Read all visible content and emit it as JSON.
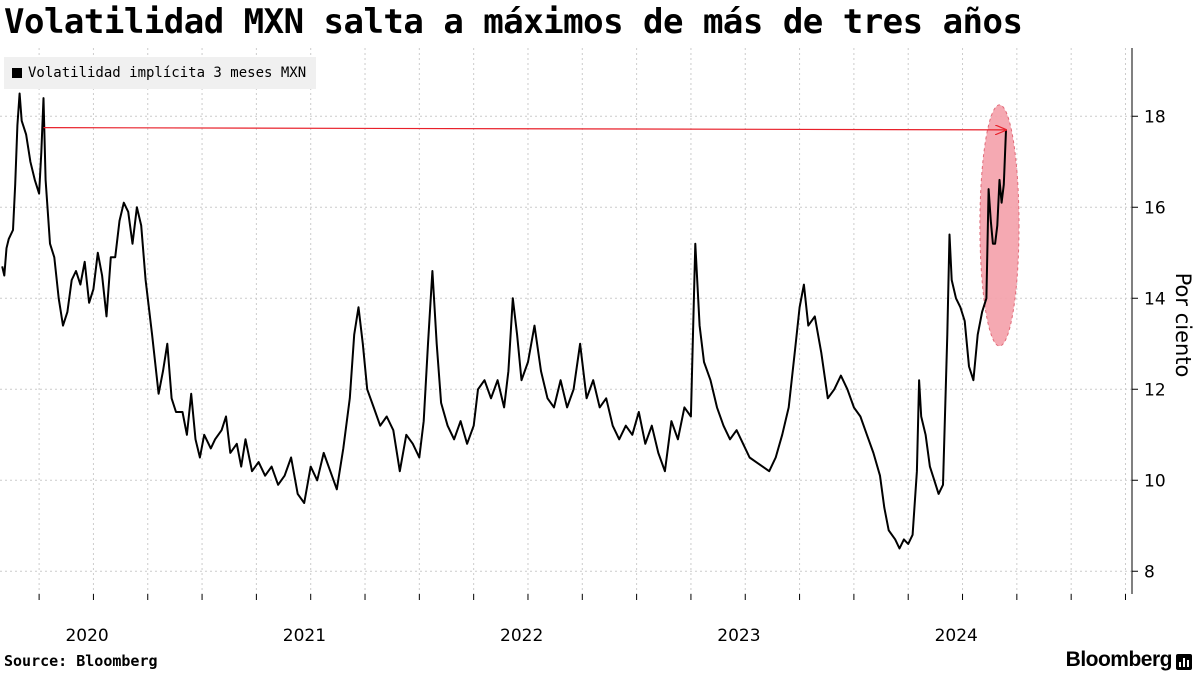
{
  "title": "Volatilidad MXN salta a máximos de más de tres años",
  "legend_label": "Volatilidad implícita 3 meses MXN",
  "source": "Source: Bloomberg",
  "brand": "Bloomberg",
  "brand_icon": "bar-chart-icon",
  "colors": {
    "line": "#000000",
    "arrow": "#e8202a",
    "highlight": "#f4a0aa",
    "grid": "#cccccc"
  },
  "chart_data": {
    "type": "line",
    "title": "Volatilidad MXN salta a máximos de más de tres años",
    "ylabel": "Por ciento",
    "ylim": [
      7.5,
      19.5
    ],
    "yticks": [
      8,
      10,
      12,
      14,
      16,
      18
    ],
    "x_ticks": [
      "2020",
      "2021",
      "2022",
      "2023",
      "2024"
    ],
    "x_tick_positions": [
      2020.0,
      2021.0,
      2022.0,
      2023.0,
      2024.0
    ],
    "xlim": [
      2019.82,
      2025.03
    ],
    "grid": true,
    "legend_position": "top-left",
    "series": [
      {
        "name": "Volatilidad implícita 3 meses MXN",
        "points": [
          [
            2019.83,
            14.7
          ],
          [
            2019.84,
            14.5
          ],
          [
            2019.85,
            15.1
          ],
          [
            2019.86,
            15.3
          ],
          [
            2019.88,
            15.5
          ],
          [
            2019.89,
            16.5
          ],
          [
            2019.9,
            17.8
          ],
          [
            2019.91,
            18.5
          ],
          [
            2019.92,
            17.9
          ],
          [
            2019.94,
            17.6
          ],
          [
            2019.96,
            17.0
          ],
          [
            2019.98,
            16.6
          ],
          [
            2020.0,
            16.3
          ],
          [
            2020.01,
            17.2
          ],
          [
            2020.02,
            18.4
          ],
          [
            2020.03,
            16.6
          ],
          [
            2020.05,
            15.2
          ],
          [
            2020.07,
            14.9
          ],
          [
            2020.09,
            14.0
          ],
          [
            2020.11,
            13.4
          ],
          [
            2020.13,
            13.7
          ],
          [
            2020.15,
            14.4
          ],
          [
            2020.17,
            14.6
          ],
          [
            2020.19,
            14.3
          ],
          [
            2020.21,
            14.8
          ],
          [
            2020.23,
            13.9
          ],
          [
            2020.25,
            14.2
          ],
          [
            2020.27,
            15.0
          ],
          [
            2020.29,
            14.5
          ],
          [
            2020.31,
            13.6
          ],
          [
            2020.33,
            14.9
          ],
          [
            2020.35,
            14.9
          ],
          [
            2020.37,
            15.7
          ],
          [
            2020.39,
            16.1
          ],
          [
            2020.41,
            15.9
          ],
          [
            2020.43,
            15.2
          ],
          [
            2020.45,
            16.0
          ],
          [
            2020.47,
            15.6
          ],
          [
            2020.49,
            14.4
          ],
          [
            2020.52,
            13.2
          ],
          [
            2020.55,
            11.9
          ],
          [
            2020.57,
            12.4
          ],
          [
            2020.59,
            13.0
          ],
          [
            2020.61,
            11.8
          ],
          [
            2020.63,
            11.5
          ],
          [
            2020.66,
            11.5
          ],
          [
            2020.68,
            11.0
          ],
          [
            2020.7,
            11.9
          ],
          [
            2020.72,
            10.9
          ],
          [
            2020.74,
            10.5
          ],
          [
            2020.76,
            11.0
          ],
          [
            2020.79,
            10.7
          ],
          [
            2020.81,
            10.9
          ],
          [
            2020.84,
            11.1
          ],
          [
            2020.86,
            11.4
          ],
          [
            2020.88,
            10.6
          ],
          [
            2020.91,
            10.8
          ],
          [
            2020.93,
            10.3
          ],
          [
            2020.95,
            10.9
          ],
          [
            2020.98,
            10.2
          ],
          [
            2021.01,
            10.4
          ],
          [
            2021.04,
            10.1
          ],
          [
            2021.07,
            10.3
          ],
          [
            2021.1,
            9.9
          ],
          [
            2021.13,
            10.1
          ],
          [
            2021.16,
            10.5
          ],
          [
            2021.19,
            9.7
          ],
          [
            2021.22,
            9.5
          ],
          [
            2021.25,
            10.3
          ],
          [
            2021.28,
            10.0
          ],
          [
            2021.31,
            10.6
          ],
          [
            2021.34,
            10.2
          ],
          [
            2021.37,
            9.8
          ],
          [
            2021.4,
            10.7
          ],
          [
            2021.43,
            11.8
          ],
          [
            2021.45,
            13.2
          ],
          [
            2021.47,
            13.8
          ],
          [
            2021.49,
            13.0
          ],
          [
            2021.51,
            12.0
          ],
          [
            2021.54,
            11.6
          ],
          [
            2021.57,
            11.2
          ],
          [
            2021.6,
            11.4
          ],
          [
            2021.63,
            11.1
          ],
          [
            2021.66,
            10.2
          ],
          [
            2021.69,
            11.0
          ],
          [
            2021.72,
            10.8
          ],
          [
            2021.75,
            10.5
          ],
          [
            2021.77,
            11.3
          ],
          [
            2021.79,
            13.0
          ],
          [
            2021.81,
            14.6
          ],
          [
            2021.83,
            13.0
          ],
          [
            2021.85,
            11.7
          ],
          [
            2021.88,
            11.2
          ],
          [
            2021.91,
            10.9
          ],
          [
            2021.94,
            11.3
          ],
          [
            2021.97,
            10.8
          ],
          [
            2022.0,
            11.2
          ],
          [
            2022.02,
            12.0
          ],
          [
            2022.05,
            12.2
          ],
          [
            2022.08,
            11.8
          ],
          [
            2022.11,
            12.2
          ],
          [
            2022.14,
            11.6
          ],
          [
            2022.16,
            12.4
          ],
          [
            2022.18,
            14.0
          ],
          [
            2022.2,
            13.2
          ],
          [
            2022.22,
            12.2
          ],
          [
            2022.25,
            12.6
          ],
          [
            2022.28,
            13.4
          ],
          [
            2022.31,
            12.4
          ],
          [
            2022.34,
            11.8
          ],
          [
            2022.37,
            11.6
          ],
          [
            2022.4,
            12.2
          ],
          [
            2022.43,
            11.6
          ],
          [
            2022.46,
            12.0
          ],
          [
            2022.49,
            13.0
          ],
          [
            2022.52,
            11.8
          ],
          [
            2022.55,
            12.2
          ],
          [
            2022.58,
            11.6
          ],
          [
            2022.61,
            11.8
          ],
          [
            2022.64,
            11.2
          ],
          [
            2022.67,
            10.9
          ],
          [
            2022.7,
            11.2
          ],
          [
            2022.73,
            11.0
          ],
          [
            2022.76,
            11.5
          ],
          [
            2022.79,
            10.8
          ],
          [
            2022.82,
            11.2
          ],
          [
            2022.85,
            10.6
          ],
          [
            2022.88,
            10.2
          ],
          [
            2022.91,
            11.3
          ],
          [
            2022.94,
            10.9
          ],
          [
            2022.97,
            11.6
          ],
          [
            2023.0,
            11.4
          ],
          [
            2023.02,
            15.2
          ],
          [
            2023.04,
            13.4
          ],
          [
            2023.06,
            12.6
          ],
          [
            2023.09,
            12.2
          ],
          [
            2023.12,
            11.6
          ],
          [
            2023.15,
            11.2
          ],
          [
            2023.18,
            10.9
          ],
          [
            2023.21,
            11.1
          ],
          [
            2023.24,
            10.8
          ],
          [
            2023.27,
            10.5
          ],
          [
            2023.3,
            10.4
          ],
          [
            2023.33,
            10.3
          ],
          [
            2023.36,
            10.2
          ],
          [
            2023.39,
            10.5
          ],
          [
            2023.42,
            11.0
          ],
          [
            2023.45,
            11.6
          ],
          [
            2023.48,
            12.9
          ],
          [
            2023.5,
            13.8
          ],
          [
            2023.52,
            14.3
          ],
          [
            2023.54,
            13.4
          ],
          [
            2023.57,
            13.6
          ],
          [
            2023.6,
            12.8
          ],
          [
            2023.63,
            11.8
          ],
          [
            2023.66,
            12.0
          ],
          [
            2023.69,
            12.3
          ],
          [
            2023.72,
            12.0
          ],
          [
            2023.75,
            11.6
          ],
          [
            2023.78,
            11.4
          ],
          [
            2023.81,
            11.0
          ],
          [
            2023.84,
            10.6
          ],
          [
            2023.87,
            10.1
          ],
          [
            2023.89,
            9.4
          ],
          [
            2023.91,
            8.9
          ],
          [
            2023.94,
            8.7
          ],
          [
            2023.96,
            8.5
          ],
          [
            2023.98,
            8.7
          ],
          [
            2024.0,
            8.6
          ],
          [
            2024.02,
            8.8
          ],
          [
            2024.04,
            10.2
          ],
          [
            2024.05,
            12.2
          ],
          [
            2024.06,
            11.4
          ],
          [
            2024.08,
            11.0
          ],
          [
            2024.1,
            10.3
          ],
          [
            2024.12,
            10.0
          ],
          [
            2024.14,
            9.7
          ],
          [
            2024.16,
            9.9
          ],
          [
            2024.18,
            13.2
          ],
          [
            2024.19,
            15.4
          ],
          [
            2024.2,
            14.4
          ],
          [
            2024.22,
            14.0
          ],
          [
            2024.24,
            13.8
          ],
          [
            2024.26,
            13.5
          ],
          [
            2024.28,
            12.5
          ],
          [
            2024.3,
            12.2
          ],
          [
            2024.32,
            13.2
          ],
          [
            2024.34,
            13.7
          ],
          [
            2024.36,
            14.0
          ],
          [
            2024.37,
            16.4
          ],
          [
            2024.38,
            15.7
          ],
          [
            2024.39,
            15.2
          ],
          [
            2024.4,
            15.2
          ],
          [
            2024.41,
            15.6
          ],
          [
            2024.42,
            16.6
          ],
          [
            2024.43,
            16.1
          ],
          [
            2024.44,
            16.5
          ],
          [
            2024.45,
            17.7
          ]
        ]
      }
    ],
    "annotations": {
      "arrow": {
        "from": [
          2020.02,
          17.75
        ],
        "to": [
          2024.45,
          17.7
        ]
      },
      "highlight_ellipse": {
        "cx": 2024.42,
        "cy": 15.6,
        "rx": 0.09,
        "ry": 2.65
      }
    }
  }
}
